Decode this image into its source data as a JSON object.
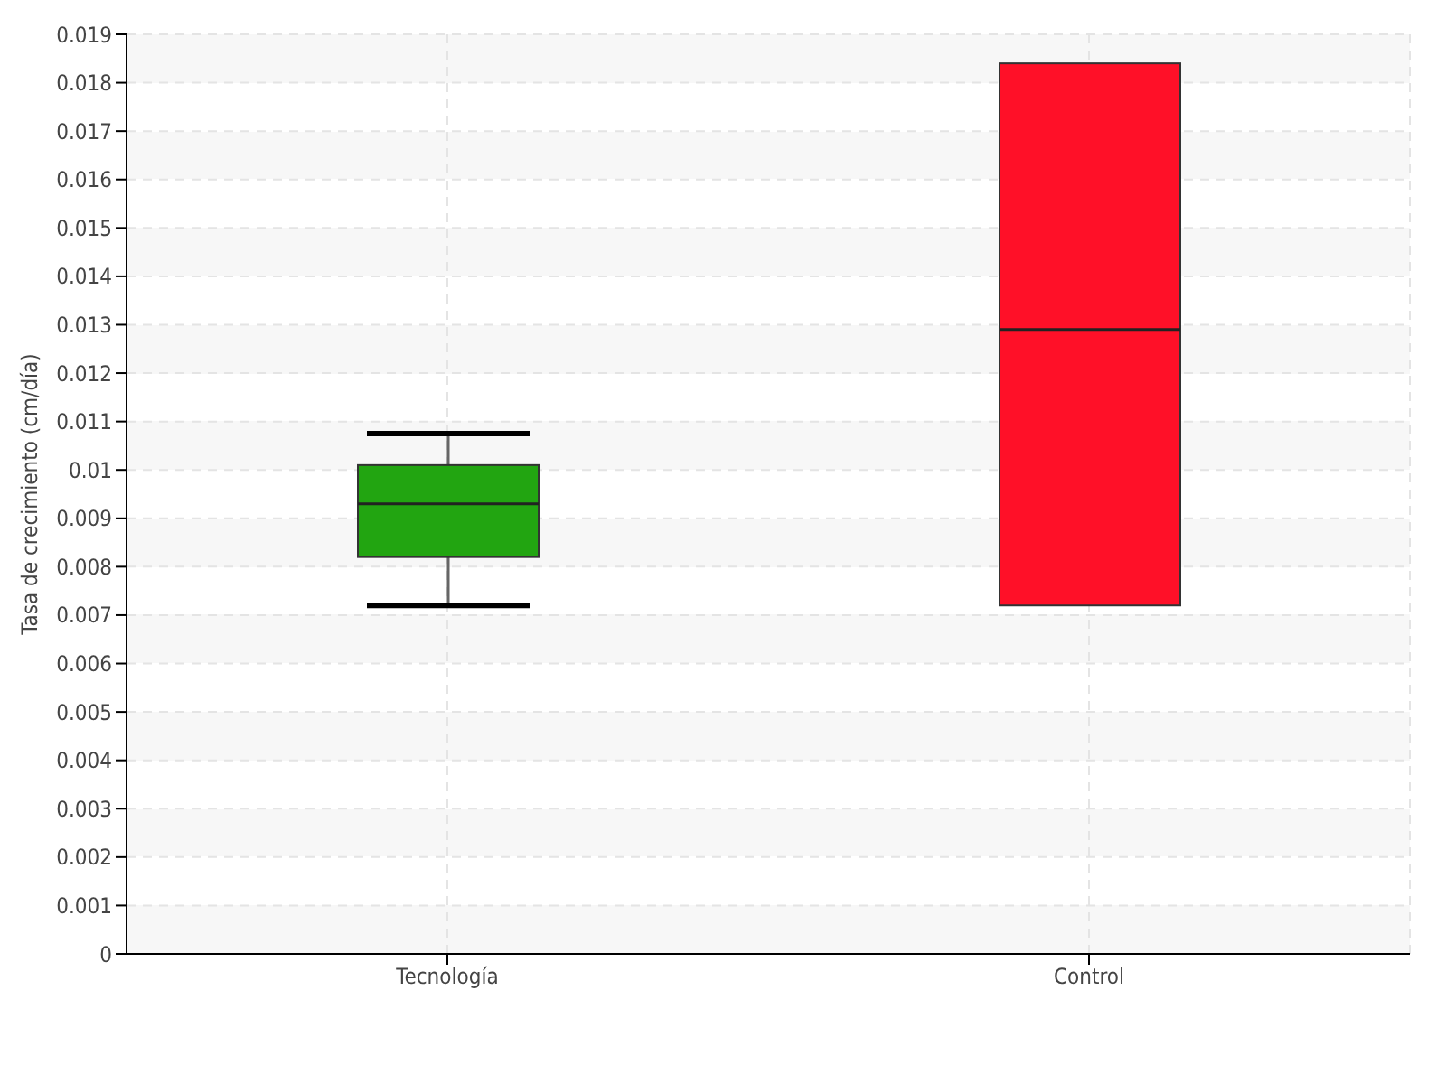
{
  "chart_data": {
    "type": "box",
    "ylabel": "Tasa de crecimiento (cm/día)",
    "categories": [
      "Tecnología",
      "Control"
    ],
    "boxes": [
      {
        "low": 0.0072,
        "q1": 0.0082,
        "median": 0.0093,
        "q3": 0.0101,
        "high": 0.01075
      },
      {
        "low": 0.0072,
        "q1": 0.0072,
        "median": 0.0129,
        "q3": 0.0184,
        "high": 0.0184
      }
    ],
    "colors": [
      "#22a511",
      "#ff1028"
    ],
    "ylim": [
      0,
      0.019
    ],
    "yticks": [
      0,
      0.001,
      0.002,
      0.003,
      0.004,
      0.005,
      0.006,
      0.007,
      0.008,
      0.009,
      0.01,
      0.011,
      0.012,
      0.013,
      0.014,
      0.015,
      0.016,
      0.017,
      0.018,
      0.019
    ],
    "grid": true
  }
}
